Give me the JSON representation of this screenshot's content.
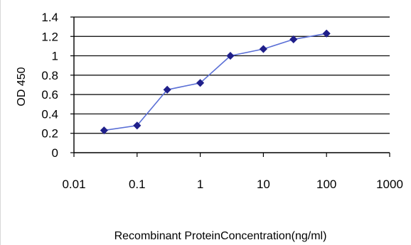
{
  "chart_data": {
    "type": "line",
    "title": "",
    "xlabel": "Recombinant ProteinConcentration(ng/ml)",
    "ylabel": "OD 450",
    "xscale": "log",
    "xlim": [
      0.01,
      1000
    ],
    "ylim": [
      0,
      1.4
    ],
    "xticks": [
      "0.01",
      "0.1",
      "1",
      "10",
      "100",
      "1000"
    ],
    "yticks": [
      "0",
      "0.2",
      "0.4",
      "0.6",
      "0.8",
      "1",
      "1.2",
      "1.4"
    ],
    "grid": "horizontal",
    "legend": "none",
    "series": [
      {
        "x": [
          0.03,
          0.1,
          0.3,
          1,
          3,
          10,
          30,
          100
        ],
        "y": [
          0.23,
          0.28,
          0.65,
          0.72,
          1.0,
          1.07,
          1.17,
          1.23
        ]
      }
    ],
    "colors": {
      "line": "#5a6fd6",
      "marker": "#1f1f8a",
      "grid": "#000000",
      "plot_bg": "#ffffff"
    }
  }
}
